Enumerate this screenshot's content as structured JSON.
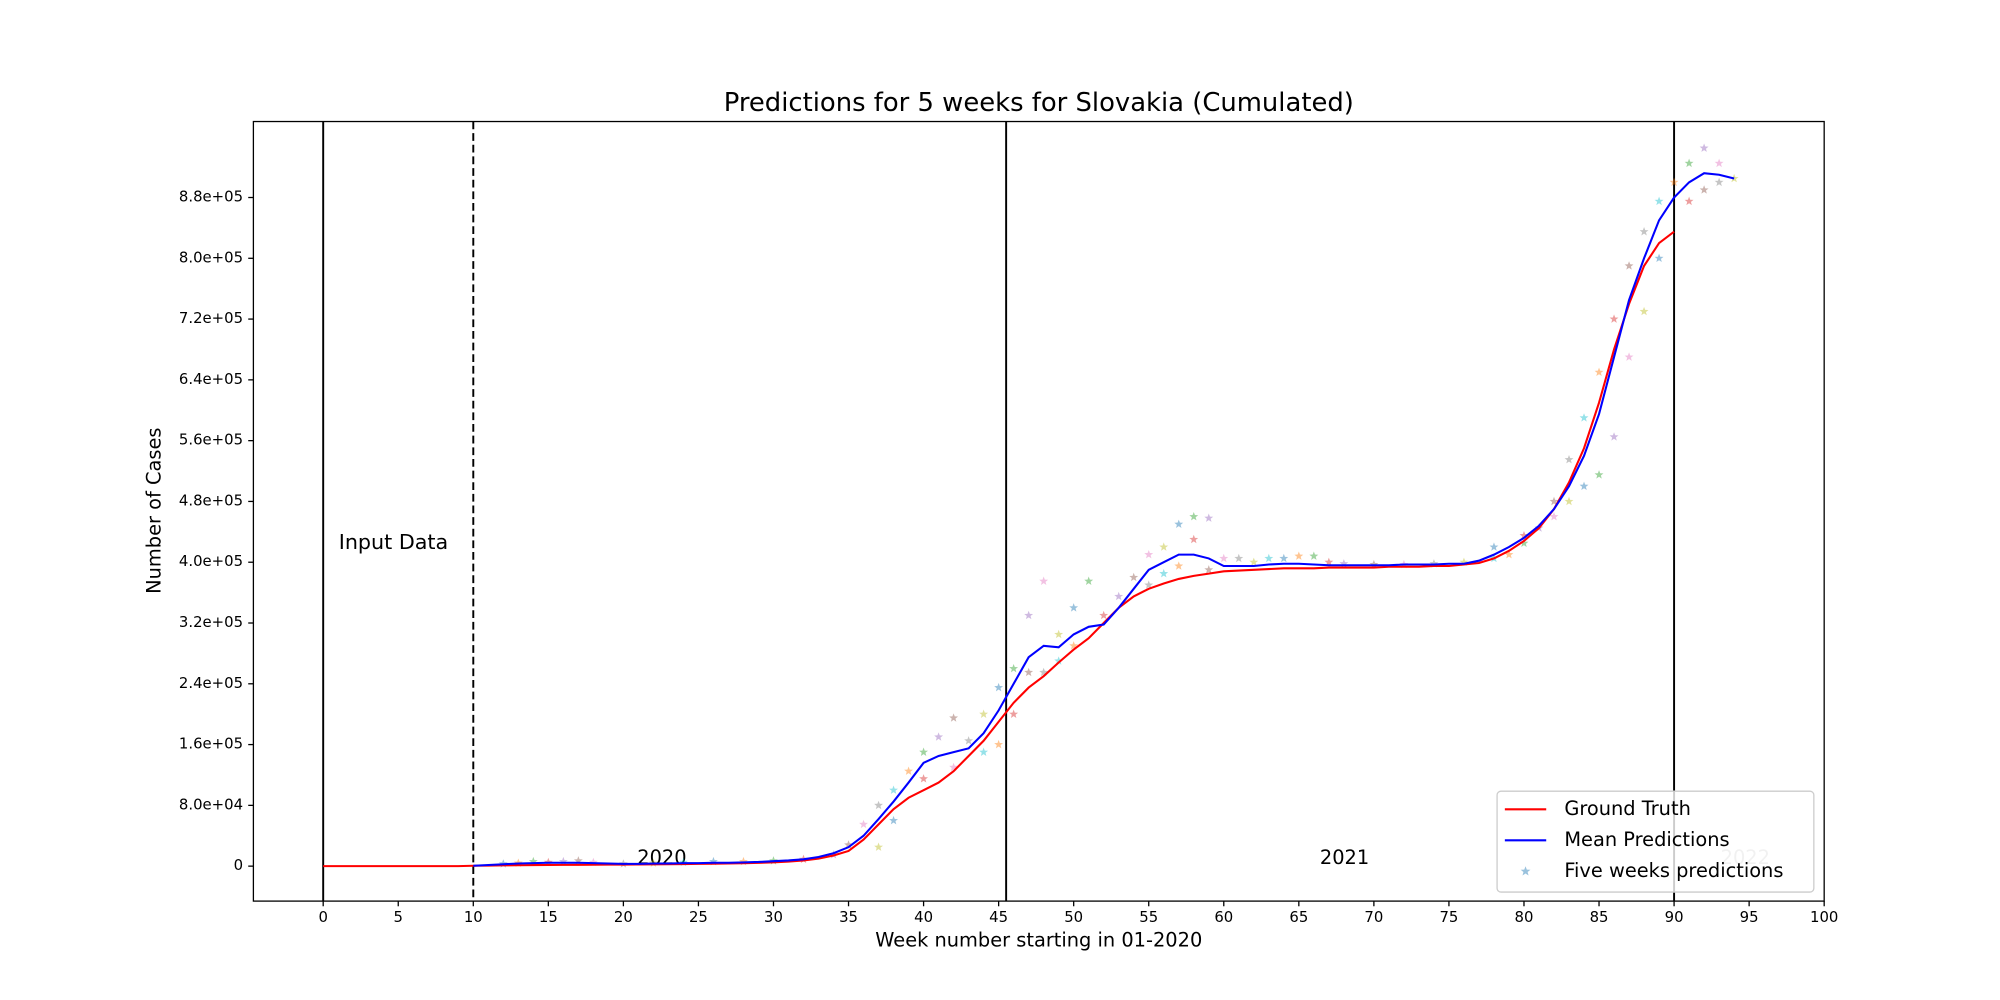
{
  "chart_data": {
    "type": "line",
    "title": "Predictions for 5 weeks for Slovakia (Cumulated)",
    "x_label": "Week number starting in 01-2020",
    "y_label": "Number of Cases",
    "annotations": [
      "Input Data",
      "2020",
      "2021",
      "2022"
    ],
    "xlim": [
      -4.65,
      100
    ],
    "ylim": [
      -46000,
      980000
    ],
    "xticks": [
      0,
      5,
      10,
      15,
      20,
      25,
      30,
      35,
      40,
      45,
      50,
      55,
      60,
      65,
      70,
      75,
      80,
      85,
      90,
      95,
      100
    ],
    "yticks": [
      0,
      {
        "value": 80000,
        "label": "8.0e+04"
      },
      {
        "value": 160000,
        "label": "1.6e+05"
      },
      {
        "value": 240000,
        "label": "2.4e+05"
      },
      {
        "value": 320000,
        "label": "3.2e+05"
      },
      {
        "value": 400000,
        "label": "4.0e+05"
      },
      {
        "value": 480000,
        "label": "4.8e+05"
      },
      {
        "value": 560000,
        "label": "5.6e+05"
      },
      {
        "value": 640000,
        "label": "6.4e+05"
      },
      {
        "value": 720000,
        "label": "7.2e+05"
      },
      {
        "value": 800000,
        "label": "8.0e+05"
      },
      {
        "value": 880000,
        "label": "8.8e+05"
      }
    ],
    "vlines": [
      0,
      10,
      45.5,
      90
    ],
    "vline_styles": [
      "solid",
      "dashed",
      "solid",
      "solid"
    ],
    "legend": "lower right",
    "x": [
      0,
      1,
      2,
      3,
      4,
      5,
      6,
      7,
      8,
      9,
      10,
      11,
      12,
      13,
      14,
      15,
      16,
      17,
      18,
      19,
      20,
      21,
      22,
      23,
      24,
      25,
      26,
      27,
      28,
      29,
      30,
      31,
      32,
      33,
      34,
      35,
      36,
      37,
      38,
      39,
      40,
      41,
      42,
      43,
      44,
      45,
      46,
      47,
      48,
      49,
      50,
      51,
      52,
      53,
      54,
      55,
      56,
      57,
      58,
      59,
      60,
      61,
      62,
      63,
      64,
      65,
      66,
      67,
      68,
      69,
      70,
      71,
      72,
      73,
      74,
      75,
      76,
      77,
      78,
      79,
      80,
      81,
      82,
      83,
      84,
      85,
      86,
      87,
      88,
      89,
      90,
      91,
      92,
      93,
      94
    ],
    "series": [
      {
        "name": "Ground Truth",
        "type": "line",
        "color": "#ff0000",
        "values": [
          0,
          0,
          0,
          0,
          0,
          0,
          0,
          0,
          0,
          0,
          500,
          800,
          1000,
          1200,
          1400,
          1500,
          1700,
          1800,
          1900,
          2000,
          2100,
          2200,
          2300,
          2500,
          2700,
          3000,
          3200,
          3500,
          3800,
          4300,
          5000,
          6000,
          7500,
          10000,
          14000,
          20000,
          35000,
          55000,
          75000,
          90000,
          100000,
          110000,
          125000,
          145000,
          165000,
          190000,
          215000,
          235000,
          250000,
          268000,
          285000,
          300000,
          320000,
          340000,
          355000,
          365000,
          372000,
          378000,
          382000,
          385000,
          388000,
          389000,
          390000,
          391000,
          392000,
          392000,
          392000,
          393000,
          393000,
          393000,
          393000,
          394000,
          394000,
          394000,
          395000,
          395000,
          397000,
          399000,
          405000,
          415000,
          428000,
          445000,
          470000,
          505000,
          550000,
          610000,
          680000,
          740000,
          790000,
          820000,
          835000,
          null,
          null,
          null,
          null
        ]
      },
      {
        "name": "Mean Predictions",
        "type": "line",
        "color": "#0000ff",
        "values": [
          null,
          null,
          null,
          null,
          null,
          null,
          null,
          null,
          null,
          null,
          500,
          1500,
          2500,
          3500,
          4000,
          4500,
          4500,
          4500,
          4000,
          3500,
          3000,
          3000,
          3500,
          3500,
          4000,
          4000,
          4500,
          4500,
          5000,
          5500,
          6500,
          7500,
          9000,
          12000,
          17000,
          25000,
          40000,
          62000,
          85000,
          110000,
          136000,
          145000,
          150000,
          155000,
          175000,
          205000,
          240000,
          275000,
          290000,
          288000,
          305000,
          315000,
          318000,
          340000,
          365000,
          390000,
          400000,
          410000,
          410000,
          405000,
          395000,
          395000,
          395000,
          397000,
          398000,
          398000,
          397000,
          396000,
          396000,
          396000,
          396000,
          396000,
          397000,
          397000,
          397000,
          398000,
          398000,
          402000,
          410000,
          420000,
          432000,
          448000,
          470000,
          500000,
          540000,
          595000,
          670000,
          745000,
          800000,
          850000,
          880000,
          900000,
          912000,
          910000,
          905000
        ]
      },
      {
        "name": "Five weeks predictions",
        "type": "scatter",
        "colors": [
          "#1f77b4",
          "#ff7f0e",
          "#2ca02c",
          "#d62728",
          "#9467bd",
          "#8c564b",
          "#e377c2",
          "#7f7f7f",
          "#bcbd22",
          "#17becf"
        ],
        "x": [
          12,
          13,
          14,
          15,
          16,
          17,
          18,
          20,
          22,
          24,
          26,
          28,
          30,
          32,
          34,
          35,
          36,
          37,
          37,
          38,
          38,
          39,
          40,
          40,
          41,
          42,
          42,
          43,
          44,
          44,
          45,
          45,
          46,
          46,
          47,
          47,
          48,
          48,
          49,
          49,
          50,
          50,
          51,
          52,
          53,
          54,
          55,
          55,
          56,
          56,
          57,
          57,
          58,
          58,
          59,
          59,
          60,
          61,
          62,
          63,
          64,
          65,
          66,
          67,
          68,
          70,
          72,
          74,
          76,
          78,
          78,
          79,
          80,
          80,
          81,
          82,
          82,
          83,
          83,
          84,
          84,
          85,
          85,
          86,
          86,
          87,
          87,
          88,
          88,
          89,
          89,
          90,
          91,
          91,
          92,
          92,
          93,
          93,
          94
        ],
        "values": [
          3000,
          4000,
          6000,
          5000,
          6000,
          7000,
          5000,
          3000,
          4000,
          5000,
          6000,
          6000,
          7000,
          9000,
          15000,
          28000,
          55000,
          80000,
          25000,
          100000,
          60000,
          125000,
          150000,
          115000,
          170000,
          195000,
          130000,
          165000,
          200000,
          150000,
          235000,
          160000,
          260000,
          200000,
          330000,
          255000,
          375000,
          255000,
          305000,
          270000,
          340000,
          290000,
          375000,
          330000,
          355000,
          380000,
          410000,
          370000,
          420000,
          385000,
          450000,
          395000,
          460000,
          430000,
          458000,
          390000,
          405000,
          405000,
          400000,
          405000,
          405000,
          408000,
          408000,
          400000,
          398000,
          397000,
          397000,
          398000,
          400000,
          405000,
          420000,
          410000,
          425000,
          435000,
          445000,
          480000,
          460000,
          535000,
          480000,
          590000,
          500000,
          650000,
          515000,
          720000,
          565000,
          790000,
          670000,
          835000,
          730000,
          875000,
          800000,
          900000,
          925000,
          875000,
          945000,
          890000,
          925000,
          900000,
          905000
        ]
      }
    ]
  }
}
